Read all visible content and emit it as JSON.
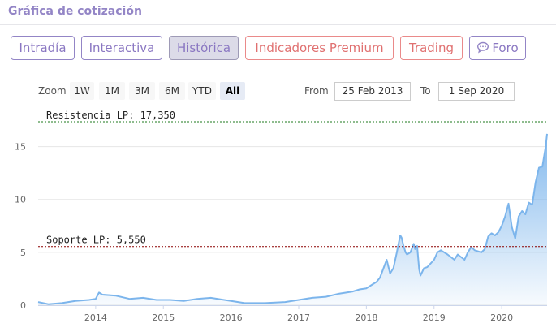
{
  "header": {
    "title": "Gráfica de cotización"
  },
  "tabs": [
    {
      "label": "Intradía",
      "style": "purple",
      "active": false
    },
    {
      "label": "Interactiva",
      "style": "purple",
      "active": false
    },
    {
      "label": "Histórica",
      "style": "purple",
      "active": true
    },
    {
      "label": "Indicadores Premium",
      "style": "red",
      "active": false
    },
    {
      "label": "Trading",
      "style": "red",
      "active": false
    },
    {
      "label": "Foro",
      "style": "purple",
      "active": false,
      "icon": "chat-bubble-icon"
    }
  ],
  "zoom": {
    "label": "Zoom",
    "buttons": [
      {
        "label": "1W",
        "active": false
      },
      {
        "label": "1M",
        "active": false
      },
      {
        "label": "3M",
        "active": false
      },
      {
        "label": "6M",
        "active": false
      },
      {
        "label": "YTD",
        "active": false
      },
      {
        "label": "All",
        "active": true
      }
    ]
  },
  "range": {
    "from_label": "From",
    "from_value": "25 Feb 2013",
    "to_label": "To",
    "to_value": "1 Sep 2020"
  },
  "colors": {
    "accent_purple": "#9385c6",
    "accent_red": "#e07070",
    "line": "#7cb5ec",
    "resistance": "#1e7a1e",
    "support": "#8b0000"
  },
  "chart_data": {
    "type": "area",
    "x_axis": {
      "ticks": [
        "2014",
        "2015",
        "2016",
        "2017",
        "2018",
        "2019",
        "2020"
      ]
    },
    "y_axis": {
      "ticks": [
        0,
        5,
        10,
        15
      ],
      "ylim": [
        0,
        17.5
      ]
    },
    "xlim": [
      2013.15,
      2020.67
    ],
    "grid": true,
    "legend": "none",
    "reference_lines": [
      {
        "label": "Resistencia LP: 17,350",
        "value": 17.35,
        "style": "dashed",
        "color": "#1e7a1e"
      },
      {
        "label": "Soporte LP: 5,550",
        "value": 5.55,
        "style": "dashed",
        "color": "#8b0000"
      }
    ],
    "series": [
      {
        "x": [
          2013.15,
          2013.3,
          2013.5,
          2013.7,
          2013.9,
          2014.0,
          2014.05,
          2014.1,
          2014.3,
          2014.5,
          2014.7,
          2014.9,
          2015.1,
          2015.3,
          2015.5,
          2015.7,
          2015.9,
          2016.0,
          2016.2,
          2016.5,
          2016.8,
          2017.0,
          2017.2,
          2017.4,
          2017.6,
          2017.8,
          2017.9,
          2018.0,
          2018.1,
          2018.15,
          2018.2,
          2018.3,
          2018.35,
          2018.4,
          2018.45,
          2018.5,
          2018.52,
          2018.55,
          2018.58,
          2018.6,
          2018.65,
          2018.7,
          2018.72,
          2018.75,
          2018.78,
          2018.8,
          2018.85,
          2018.9,
          2019.0,
          2019.05,
          2019.1,
          2019.2,
          2019.3,
          2019.35,
          2019.45,
          2019.5,
          2019.55,
          2019.6,
          2019.7,
          2019.75,
          2019.8,
          2019.85,
          2019.9,
          2019.95,
          2020.0,
          2020.05,
          2020.1,
          2020.15,
          2020.2,
          2020.25,
          2020.3,
          2020.35,
          2020.4,
          2020.45,
          2020.5,
          2020.55,
          2020.6,
          2020.65,
          2020.67
        ],
        "values": [
          0.3,
          0.1,
          0.2,
          0.4,
          0.5,
          0.6,
          1.2,
          1.0,
          0.9,
          0.6,
          0.7,
          0.5,
          0.5,
          0.4,
          0.6,
          0.7,
          0.5,
          0.4,
          0.2,
          0.2,
          0.3,
          0.5,
          0.7,
          0.8,
          1.1,
          1.3,
          1.5,
          1.6,
          2.0,
          2.2,
          2.6,
          4.3,
          3.0,
          3.5,
          5.0,
          6.6,
          6.4,
          5.6,
          5.0,
          4.8,
          5.0,
          5.8,
          5.3,
          5.6,
          3.4,
          2.8,
          3.5,
          3.6,
          4.3,
          5.0,
          5.2,
          4.8,
          4.3,
          4.8,
          4.3,
          5.0,
          5.5,
          5.2,
          5.0,
          5.3,
          6.5,
          6.8,
          6.6,
          6.9,
          7.5,
          8.4,
          9.6,
          7.4,
          6.3,
          8.4,
          8.9,
          8.6,
          9.7,
          9.5,
          11.6,
          13.0,
          13.1,
          15.0,
          16.2
        ]
      }
    ]
  }
}
